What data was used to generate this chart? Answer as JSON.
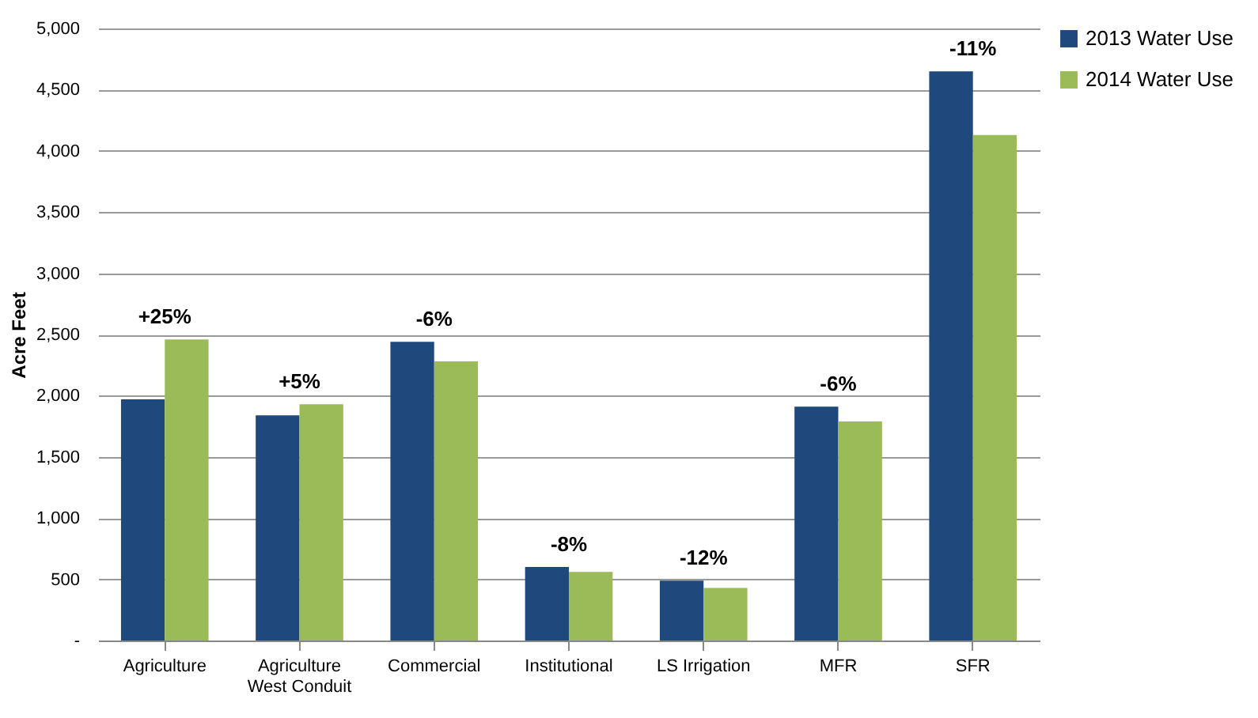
{
  "chart_data": {
    "type": "bar",
    "ylabel": "Acre Feet",
    "categories": [
      "Agriculture",
      "Agriculture West Conduit",
      "Commercial",
      "Institutional",
      "LS Irrigation",
      "MFR",
      "SFR"
    ],
    "series": [
      {
        "name": "2013 Water Use",
        "color": "#1f497d",
        "values": [
          1970,
          1840,
          2440,
          600,
          490,
          1910,
          4650
        ]
      },
      {
        "name": "2014 Water Use",
        "color": "#9bbb59",
        "values": [
          2460,
          1930,
          2280,
          560,
          430,
          1790,
          4130
        ]
      }
    ],
    "ylim": [
      0,
      5000
    ],
    "yticks": [
      {
        "value": 0,
        "label": "-"
      },
      500,
      {
        "value": 1000,
        "label": "1,000"
      },
      {
        "value": 1500,
        "label": "1,500"
      },
      {
        "value": 2000,
        "label": "2,000"
      },
      {
        "value": 2500,
        "label": "2,500"
      },
      {
        "value": 3000,
        "label": "3,000"
      },
      {
        "value": 3500,
        "label": "3,500"
      },
      {
        "value": 4000,
        "label": "4,000"
      },
      {
        "value": 4500,
        "label": "4,500"
      },
      {
        "value": 5000,
        "label": "5,000"
      }
    ],
    "grid": "y",
    "legend": "right",
    "annotations": [
      {
        "text": "+25%",
        "x": "Agriculture",
        "y": 2460
      },
      {
        "text": "+5%",
        "x": "Agriculture West Conduit",
        "y": 1930
      },
      {
        "text": "-6%",
        "x": "Commercial",
        "y": 2440
      },
      {
        "text": "-8%",
        "x": "Institutional",
        "y": 600
      },
      {
        "text": "-12%",
        "x": "LS Irrigation",
        "y": 490
      },
      {
        "text": "-6%",
        "x": "MFR",
        "y": 1910
      },
      {
        "text": "-11%",
        "x": "SFR",
        "y": 4650
      }
    ]
  }
}
